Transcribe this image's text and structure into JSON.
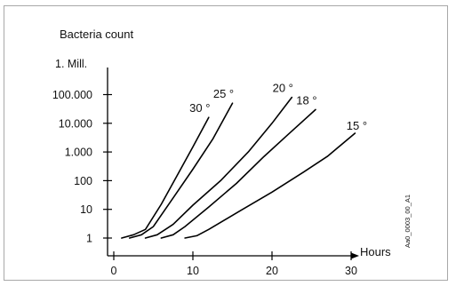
{
  "chart_data": {
    "type": "line",
    "title": "",
    "ylabel": "Bacteria count",
    "xlabel": "Hours",
    "x_ticks": [
      0,
      10,
      20,
      30
    ],
    "y_scale": "log",
    "y_ticks": [
      1,
      10,
      100,
      1000,
      10000,
      100000,
      1000000
    ],
    "y_tick_labels": [
      "1",
      "10",
      "100",
      "1.000",
      "10.000",
      "100.000",
      "1. Mill."
    ],
    "xlim": [
      0,
      30
    ],
    "grid": false,
    "legend": "none",
    "series": [
      {
        "name": "30 °",
        "points": [
          [
            1,
            1
          ],
          [
            2.5,
            1.3
          ],
          [
            4,
            2
          ],
          [
            6,
            15
          ],
          [
            8,
            150
          ],
          [
            10,
            1500
          ],
          [
            12,
            16000
          ]
        ]
      },
      {
        "name": "25 °",
        "points": [
          [
            2,
            1
          ],
          [
            3.5,
            1.3
          ],
          [
            5,
            2.5
          ],
          [
            7.5,
            25
          ],
          [
            10,
            250
          ],
          [
            12.5,
            2800
          ],
          [
            15,
            50000
          ]
        ]
      },
      {
        "name": "20 °",
        "points": [
          [
            4,
            1
          ],
          [
            5.5,
            1.3
          ],
          [
            7.5,
            3
          ],
          [
            10,
            14
          ],
          [
            13.5,
            100
          ],
          [
            17,
            1000
          ],
          [
            20,
            10000
          ],
          [
            22.5,
            80000
          ]
        ]
      },
      {
        "name": "18 °",
        "points": [
          [
            6,
            1
          ],
          [
            7.5,
            1.3
          ],
          [
            9,
            2.5
          ],
          [
            12,
            12
          ],
          [
            15.5,
            80
          ],
          [
            19,
            700
          ],
          [
            22,
            4000
          ],
          [
            25.5,
            30000
          ]
        ]
      },
      {
        "name": "15 °",
        "points": [
          [
            9,
            1
          ],
          [
            10.5,
            1.2
          ],
          [
            12,
            2
          ],
          [
            16,
            9
          ],
          [
            20,
            40
          ],
          [
            24,
            200
          ],
          [
            27,
            700
          ],
          [
            30.5,
            4500
          ]
        ]
      }
    ]
  },
  "side_label": "Aa0_0003_00_A1",
  "colors": {
    "line": "#000000",
    "axis": "#000000",
    "frame": "#a8a8a8"
  }
}
